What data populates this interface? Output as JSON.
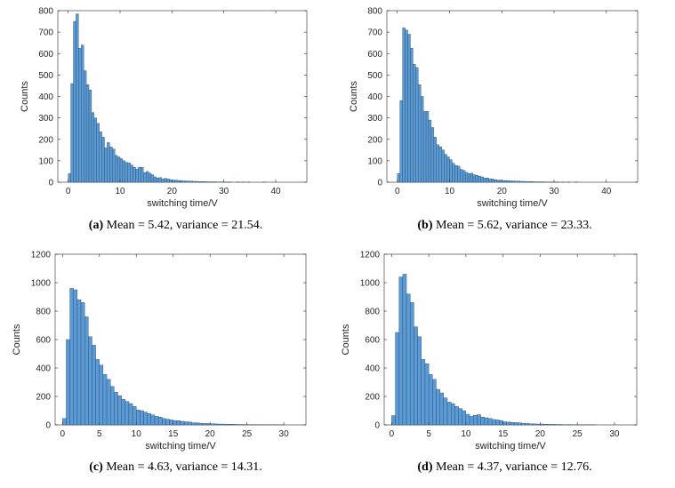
{
  "bar_color": "#5b9bd5",
  "bar_edge": "#1f3b57",
  "axis_color": "#262626",
  "chart_data": [
    {
      "id": "a",
      "type": "bar",
      "title": "",
      "xlabel": "switching time/V",
      "ylabel": "Counts",
      "xlim": [
        -2,
        46
      ],
      "ylim": [
        0,
        800
      ],
      "xticks": [
        0,
        10,
        20,
        30,
        40
      ],
      "yticks": [
        0,
        100,
        200,
        300,
        400,
        500,
        600,
        700,
        800
      ],
      "bin_start": 0.0,
      "bin_width": 0.5,
      "values": [
        40,
        460,
        750,
        785,
        625,
        640,
        520,
        455,
        430,
        325,
        300,
        275,
        235,
        210,
        160,
        185,
        165,
        155,
        125,
        118,
        110,
        100,
        92,
        90,
        80,
        70,
        62,
        70,
        70,
        45,
        50,
        42,
        35,
        25,
        20,
        22,
        15,
        18,
        15,
        12,
        10,
        10,
        8,
        8,
        6,
        6,
        5,
        5,
        4,
        4,
        3,
        3,
        3,
        2,
        2,
        2,
        2,
        1,
        1,
        1,
        1,
        1,
        1,
        0,
        0,
        1,
        0,
        1,
        0,
        1,
        0,
        0,
        0,
        0,
        0,
        1,
        0,
        0,
        0,
        0,
        0,
        0,
        0,
        0,
        0,
        0,
        0,
        0,
        0
      ],
      "caption_label": "(a)",
      "caption_text": "Mean = 5.42, variance = 21.54."
    },
    {
      "id": "b",
      "type": "bar",
      "title": "",
      "xlabel": "switching time/V",
      "ylabel": "Counts",
      "xlim": [
        -2,
        46
      ],
      "ylim": [
        0,
        800
      ],
      "xticks": [
        0,
        10,
        20,
        30,
        40
      ],
      "yticks": [
        0,
        100,
        200,
        300,
        400,
        500,
        600,
        700,
        800
      ],
      "bin_start": 0.0,
      "bin_width": 0.5,
      "values": [
        40,
        380,
        720,
        710,
        690,
        625,
        550,
        535,
        455,
        400,
        330,
        330,
        290,
        255,
        210,
        175,
        165,
        150,
        130,
        118,
        105,
        88,
        78,
        75,
        60,
        55,
        46,
        40,
        42,
        35,
        32,
        28,
        25,
        20,
        20,
        15,
        15,
        12,
        10,
        10,
        8,
        8,
        7,
        6,
        6,
        5,
        5,
        4,
        4,
        3,
        3,
        3,
        2,
        2,
        2,
        2,
        1,
        1,
        1,
        1,
        1,
        1,
        0,
        1,
        0,
        1,
        0,
        0,
        1,
        0,
        0,
        0,
        0,
        0,
        0,
        0,
        0,
        0,
        0,
        0,
        0,
        0,
        0,
        0,
        0,
        0,
        0,
        0,
        0
      ],
      "caption_label": "(b)",
      "caption_text": "Mean = 5.62, variance = 23.33."
    },
    {
      "id": "c",
      "type": "bar",
      "title": "",
      "xlabel": "switching time/V",
      "ylabel": "Counts",
      "xlim": [
        -1,
        33
      ],
      "ylim": [
        0,
        1200
      ],
      "xticks": [
        0,
        5,
        10,
        15,
        20,
        25,
        30
      ],
      "yticks": [
        0,
        200,
        400,
        600,
        800,
        1000,
        1200
      ],
      "bin_start": 0.0,
      "bin_width": 0.5,
      "values": [
        45,
        600,
        960,
        950,
        880,
        860,
        760,
        620,
        560,
        460,
        420,
        355,
        320,
        270,
        230,
        205,
        180,
        165,
        150,
        130,
        105,
        100,
        90,
        80,
        70,
        60,
        55,
        45,
        40,
        35,
        30,
        30,
        25,
        22,
        20,
        15,
        15,
        12,
        10,
        10,
        8,
        7,
        6,
        6,
        5,
        5,
        4,
        3,
        3,
        2,
        2,
        2,
        2,
        1,
        1,
        1,
        1,
        1,
        1,
        1,
        0,
        0,
        0
      ],
      "caption_label": "(c)",
      "caption_text": "Mean = 4.63, variance = 14.31."
    },
    {
      "id": "d",
      "type": "bar",
      "title": "",
      "xlabel": "switching time/V",
      "ylabel": "Counts",
      "xlim": [
        -1,
        33
      ],
      "ylim": [
        0,
        1200
      ],
      "xticks": [
        0,
        5,
        10,
        15,
        20,
        25,
        30
      ],
      "yticks": [
        0,
        200,
        400,
        600,
        800,
        1000,
        1200
      ],
      "bin_start": 0.0,
      "bin_width": 0.5,
      "values": [
        65,
        650,
        1040,
        1060,
        920,
        860,
        690,
        620,
        460,
        430,
        355,
        320,
        250,
        225,
        190,
        160,
        150,
        130,
        115,
        100,
        75,
        60,
        68,
        72,
        55,
        50,
        45,
        38,
        35,
        30,
        22,
        20,
        18,
        16,
        15,
        12,
        10,
        8,
        7,
        6,
        6,
        5,
        4,
        4,
        3,
        3,
        2,
        2,
        2,
        1,
        1,
        1,
        1,
        1,
        1,
        0,
        0,
        0,
        0,
        0,
        0,
        0,
        0
      ],
      "caption_label": "(d)",
      "caption_text": "Mean = 4.37, variance = 12.76."
    }
  ]
}
